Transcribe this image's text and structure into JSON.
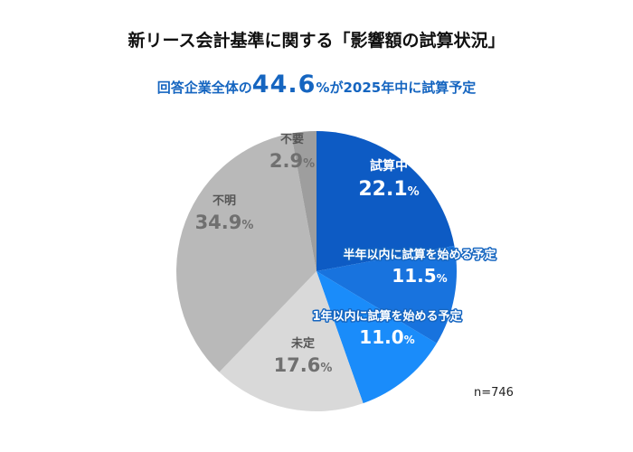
{
  "chart_data": {
    "type": "pie",
    "title": "新リース会計基準に関する「影響額の試算状況」",
    "subtitle": {
      "prefix": "回答企業全体の",
      "value": "44.6",
      "unit": "%",
      "suffix": "が2025年中に試算予定"
    },
    "sample_size": "n=746",
    "slices": [
      {
        "label": "試算中",
        "value": 22.1,
        "value_text": "22.1",
        "unit": "%",
        "color": "#0D5BC4"
      },
      {
        "label": "半年以内に試算を始める予定",
        "value": 11.5,
        "value_text": "11.5",
        "unit": "%",
        "color": "#1873DE"
      },
      {
        "label": "1年以内に試算を始める予定",
        "value": 11.0,
        "value_text": "11.0",
        "unit": "%",
        "color": "#1A8CFA"
      },
      {
        "label": "未定",
        "value": 17.6,
        "value_text": "17.6",
        "unit": "%",
        "color": "#D9D9D9"
      },
      {
        "label": "不明",
        "value": 34.9,
        "value_text": "34.9",
        "unit": "%",
        "color": "#B9B9B9"
      },
      {
        "label": "不要",
        "value": 2.9,
        "value_text": "2.9",
        "unit": "%",
        "color": "#9E9E9E"
      }
    ]
  }
}
